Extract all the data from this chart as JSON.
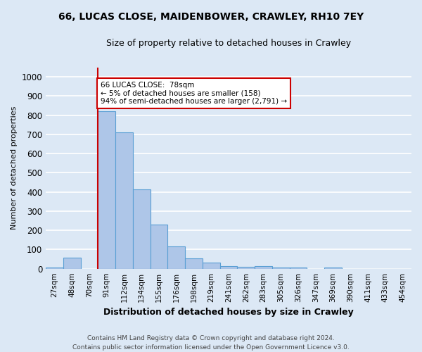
{
  "title": "66, LUCAS CLOSE, MAIDENBOWER, CRAWLEY, RH10 7EY",
  "subtitle": "Size of property relative to detached houses in Crawley",
  "xlabel": "Distribution of detached houses by size in Crawley",
  "ylabel": "Number of detached properties",
  "footer_line1": "Contains HM Land Registry data © Crown copyright and database right 2024.",
  "footer_line2": "Contains public sector information licensed under the Open Government Licence v3.0.",
  "bin_labels": [
    "27sqm",
    "48sqm",
    "70sqm",
    "91sqm",
    "112sqm",
    "134sqm",
    "155sqm",
    "176sqm",
    "198sqm",
    "219sqm",
    "241sqm",
    "262sqm",
    "283sqm",
    "305sqm",
    "326sqm",
    "347sqm",
    "369sqm",
    "390sqm",
    "411sqm",
    "433sqm",
    "454sqm"
  ],
  "bar_values": [
    8,
    57,
    0,
    820,
    710,
    415,
    230,
    115,
    55,
    33,
    15,
    10,
    12,
    8,
    5,
    0,
    8,
    0,
    0,
    0,
    0
  ],
  "bar_color": "#aec6e8",
  "bar_edge_color": "#5a9fd4",
  "annotation_text": "66 LUCAS CLOSE:  78sqm\n← 5% of detached houses are smaller (158)\n94% of semi-detached houses are larger (2,791) →",
  "annotation_box_color": "#ffffff",
  "annotation_edge_color": "#cc0000",
  "vline_color": "#cc0000",
  "vline_x_index": 2.5,
  "ylim": [
    0,
    1050
  ],
  "yticks": [
    0,
    100,
    200,
    300,
    400,
    500,
    600,
    700,
    800,
    900,
    1000
  ],
  "background_color": "#dce8f5",
  "grid_color": "#ffffff"
}
